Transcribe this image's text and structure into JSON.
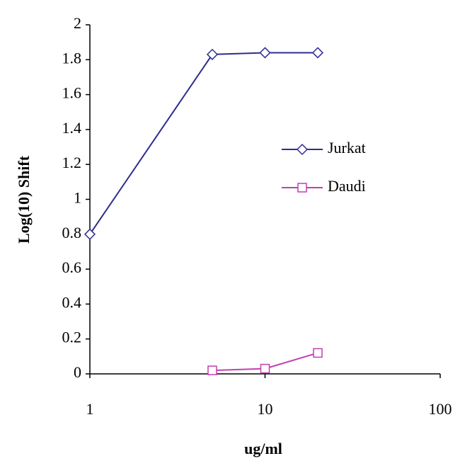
{
  "chart_data": {
    "type": "line",
    "xlabel": "ug/ml",
    "ylabel": "Log(10) Shift",
    "xscale": "log",
    "xlim": [
      1,
      100
    ],
    "xticks": [
      1,
      10,
      100
    ],
    "ylim": [
      0,
      2
    ],
    "yticks": [
      0,
      0.2,
      0.4,
      0.6,
      0.8,
      1,
      1.2,
      1.4,
      1.6,
      1.8,
      2
    ],
    "series": [
      {
        "name": "Jurkat",
        "color": "#2e2e8f",
        "marker": "diamond",
        "x": [
          1,
          5,
          10,
          20
        ],
        "values": [
          0.8,
          1.83,
          1.84,
          1.84
        ]
      },
      {
        "name": "Daudi",
        "color": "#c040b0",
        "marker": "square",
        "x": [
          5,
          10,
          20
        ],
        "values": [
          0.02,
          0.03,
          0.12
        ]
      }
    ]
  }
}
